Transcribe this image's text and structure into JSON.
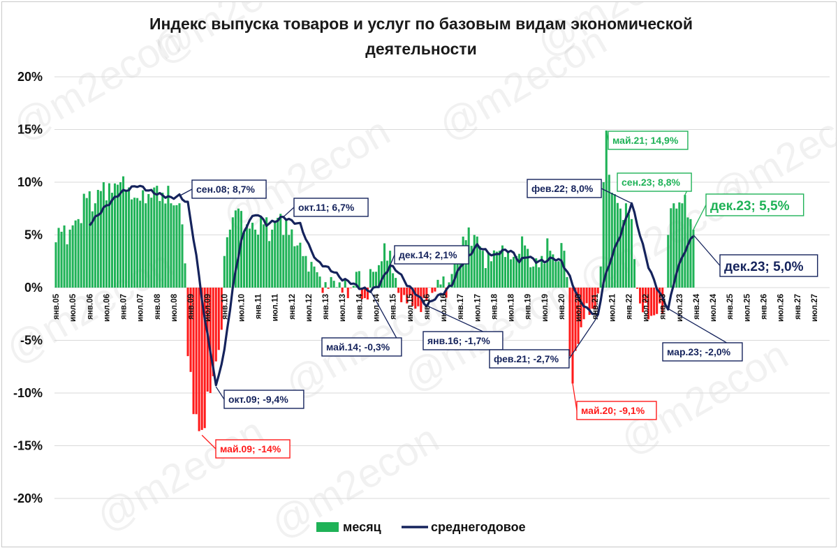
{
  "chart_data": {
    "type": "bar",
    "title_line1": "Индекс выпуска товаров и услуг по базовым видам экономической",
    "title_line2": "деятельности",
    "watermark": "@m2econ",
    "ylim": [
      -20,
      20
    ],
    "yticks": [
      20,
      15,
      10,
      5,
      0,
      -5,
      -10,
      -15,
      -20
    ],
    "ytick_labels": [
      "20%",
      "15%",
      "10%",
      "5%",
      "0%",
      "-5%",
      "-10%",
      "-15%",
      "-20%"
    ],
    "x_range": [
      "2005-01",
      "2027-12"
    ],
    "xtick_labels": [
      "янв.05",
      "июл.05",
      "янв.06",
      "июл.06",
      "янв.07",
      "июл.07",
      "янв.08",
      "июл.08",
      "янв.09",
      "июл.09",
      "янв.10",
      "июл.10",
      "янв.11",
      "июл.11",
      "янв.12",
      "июл.12",
      "янв.13",
      "июл.13",
      "янв.14",
      "июл.14",
      "янв.15",
      "июл.15",
      "янв.16",
      "июл.16",
      "янв.17",
      "июл.17",
      "янв.18",
      "июл.18",
      "янв.19",
      "июл.19",
      "янв.20",
      "июл.20",
      "янв.21",
      "июл.21",
      "янв.22",
      "июл.22",
      "янв.23",
      "июл.23",
      "янв.24",
      "июл.24",
      "янв.25",
      "июл.25",
      "янв.26",
      "июл.26",
      "янв.27",
      "июл.27"
    ],
    "legend": {
      "bar": "месяц",
      "line": "среднегодовое",
      "position": "bottom"
    },
    "colors": {
      "positive": "#1fb257",
      "negative": "#ff1a1a",
      "line": "#15235c",
      "grid": "#d9d9d9"
    },
    "monthly_anchors": [
      [
        "2005-01",
        4.3
      ],
      [
        "2005-03",
        5.3
      ],
      [
        "2005-06",
        5.5
      ],
      [
        "2005-09",
        6.5
      ],
      [
        "2005-12",
        8.5
      ],
      [
        "2006-03",
        8.0
      ],
      [
        "2006-06",
        10.0
      ],
      [
        "2006-09",
        9.0
      ],
      [
        "2006-12",
        10.0
      ],
      [
        "2007-03",
        9.5
      ],
      [
        "2007-06",
        8.5
      ],
      [
        "2007-09",
        8.0
      ],
      [
        "2007-12",
        9.5
      ],
      [
        "2008-03",
        9.0
      ],
      [
        "2008-06",
        8.0
      ],
      [
        "2008-09",
        8.0
      ],
      [
        "2008-10",
        6.0
      ],
      [
        "2008-11",
        2.3
      ],
      [
        "2008-12",
        -6.5
      ],
      [
        "2009-01",
        -8.0
      ],
      [
        "2009-02",
        -12.0
      ],
      [
        "2009-05",
        -13.5
      ],
      [
        "2009-08",
        -10.0
      ],
      [
        "2009-10",
        -7.0
      ],
      [
        "2009-12",
        -4.0
      ],
      [
        "2010-01",
        3.0
      ],
      [
        "2010-03",
        5.5
      ],
      [
        "2010-06",
        7.5
      ],
      [
        "2010-09",
        6.0
      ],
      [
        "2010-12",
        5.5
      ],
      [
        "2011-03",
        6.0
      ],
      [
        "2011-06",
        5.5
      ],
      [
        "2011-09",
        7.0
      ],
      [
        "2011-12",
        5.0
      ],
      [
        "2012-03",
        4.0
      ],
      [
        "2012-06",
        3.0
      ],
      [
        "2012-09",
        2.0
      ],
      [
        "2012-12",
        -0.5
      ],
      [
        "2013-03",
        1.0
      ],
      [
        "2013-06",
        0.5
      ],
      [
        "2013-09",
        -1.0
      ],
      [
        "2013-12",
        1.5
      ],
      [
        "2014-03",
        -1.0
      ],
      [
        "2014-06",
        1.5
      ],
      [
        "2014-09",
        2.5
      ],
      [
        "2014-12",
        3.5
      ],
      [
        "2015-03",
        -0.5
      ],
      [
        "2015-06",
        -1.5
      ],
      [
        "2015-09",
        -2.0
      ],
      [
        "2015-12",
        -1.0
      ],
      [
        "2016-03",
        -0.5
      ],
      [
        "2016-06",
        0.3
      ],
      [
        "2016-09",
        0.5
      ],
      [
        "2016-12",
        3.0
      ],
      [
        "2017-03",
        4.5
      ],
      [
        "2017-06",
        5.0
      ],
      [
        "2017-09",
        3.5
      ],
      [
        "2017-12",
        2.5
      ],
      [
        "2018-03",
        3.5
      ],
      [
        "2018-06",
        3.5
      ],
      [
        "2018-09",
        3.0
      ],
      [
        "2018-12",
        4.0
      ],
      [
        "2019-03",
        2.0
      ],
      [
        "2019-06",
        3.0
      ],
      [
        "2019-09",
        3.5
      ],
      [
        "2019-12",
        2.5
      ],
      [
        "2020-02",
        3.5
      ],
      [
        "2020-03",
        1.0
      ],
      [
        "2020-04",
        -6.5
      ],
      [
        "2020-05",
        -9.1
      ],
      [
        "2020-06",
        -6.0
      ],
      [
        "2020-09",
        -3.0
      ],
      [
        "2020-12",
        -2.0
      ],
      [
        "2021-01",
        -2.0
      ],
      [
        "2021-03",
        2.0
      ],
      [
        "2021-04",
        10.0
      ],
      [
        "2021-05",
        14.9
      ],
      [
        "2021-07",
        9.0
      ],
      [
        "2021-10",
        7.5
      ],
      [
        "2021-12",
        8.0
      ],
      [
        "2022-02",
        6.5
      ],
      [
        "2022-03",
        2.7
      ],
      [
        "2022-05",
        -1.5
      ],
      [
        "2022-08",
        -3.0
      ],
      [
        "2022-11",
        -2.5
      ],
      [
        "2022-12",
        -1.5
      ],
      [
        "2023-01",
        -2.5
      ],
      [
        "2023-02",
        0.0
      ],
      [
        "2023-03",
        5.0
      ],
      [
        "2023-05",
        8.0
      ],
      [
        "2023-06",
        7.5
      ],
      [
        "2023-08",
        8.0
      ],
      [
        "2023-09",
        8.8
      ],
      [
        "2023-11",
        6.5
      ],
      [
        "2023-12",
        5.5
      ]
    ],
    "line_anchors": [
      [
        "2006-01",
        6.0
      ],
      [
        "2006-06",
        7.5
      ],
      [
        "2006-12",
        9.0
      ],
      [
        "2007-06",
        9.7
      ],
      [
        "2007-12",
        9.0
      ],
      [
        "2008-06",
        8.5
      ],
      [
        "2008-09",
        8.7
      ],
      [
        "2008-12",
        8.0
      ],
      [
        "2009-03",
        3.0
      ],
      [
        "2009-06",
        -3.0
      ],
      [
        "2009-09",
        -7.5
      ],
      [
        "2009-10",
        -9.4
      ],
      [
        "2010-01",
        -6.0
      ],
      [
        "2010-04",
        0.0
      ],
      [
        "2010-07",
        4.5
      ],
      [
        "2010-10",
        6.5
      ],
      [
        "2011-01",
        7.0
      ],
      [
        "2011-04",
        6.0
      ],
      [
        "2011-07",
        6.3
      ],
      [
        "2011-10",
        6.7
      ],
      [
        "2012-01",
        6.3
      ],
      [
        "2012-04",
        6.0
      ],
      [
        "2012-07",
        4.0
      ],
      [
        "2012-10",
        2.5
      ],
      [
        "2013-01",
        2.0
      ],
      [
        "2013-04",
        1.5
      ],
      [
        "2013-07",
        0.8
      ],
      [
        "2013-10",
        0.5
      ],
      [
        "2014-01",
        0.0
      ],
      [
        "2014-05",
        -0.3
      ],
      [
        "2014-08",
        0.2
      ],
      [
        "2014-12",
        2.1
      ],
      [
        "2015-03",
        1.5
      ],
      [
        "2015-06",
        0.3
      ],
      [
        "2015-09",
        -0.5
      ],
      [
        "2016-01",
        -1.7
      ],
      [
        "2016-04",
        -1.0
      ],
      [
        "2016-07",
        -0.5
      ],
      [
        "2016-10",
        0.3
      ],
      [
        "2017-01",
        2.0
      ],
      [
        "2017-04",
        3.0
      ],
      [
        "2017-07",
        4.0
      ],
      [
        "2017-10",
        3.5
      ],
      [
        "2018-01",
        3.0
      ],
      [
        "2018-04",
        3.5
      ],
      [
        "2018-07",
        3.5
      ],
      [
        "2018-10",
        2.5
      ],
      [
        "2019-01",
        3.0
      ],
      [
        "2019-04",
        2.5
      ],
      [
        "2019-07",
        2.5
      ],
      [
        "2019-10",
        2.8
      ],
      [
        "2020-01",
        2.5
      ],
      [
        "2020-04",
        1.0
      ],
      [
        "2020-07",
        -1.0
      ],
      [
        "2020-10",
        -2.0
      ],
      [
        "2021-02",
        -2.7
      ],
      [
        "2021-04",
        0.5
      ],
      [
        "2021-07",
        3.0
      ],
      [
        "2021-10",
        5.0
      ],
      [
        "2022-02",
        8.0
      ],
      [
        "2022-05",
        5.0
      ],
      [
        "2022-08",
        2.0
      ],
      [
        "2022-11",
        0.0
      ],
      [
        "2023-03",
        -2.0
      ],
      [
        "2023-06",
        1.5
      ],
      [
        "2023-09",
        3.5
      ],
      [
        "2023-12",
        5.0
      ]
    ],
    "annotations": [
      {
        "text": "сен.08; 8,7%",
        "x": "2008-09",
        "y": 8.7,
        "color": "#15235c"
      },
      {
        "text": "окт.09; -9,4%",
        "x": "2009-10",
        "y": -9.4,
        "color": "#15235c"
      },
      {
        "text": "май.09; -14%",
        "x": "2009-05",
        "y": -14.0,
        "color": "#ff1a1a"
      },
      {
        "text": "окт.11; 6,7%",
        "x": "2011-10",
        "y": 6.7,
        "color": "#15235c"
      },
      {
        "text": "май.14; -0,3%",
        "x": "2014-05",
        "y": -0.3,
        "color": "#15235c"
      },
      {
        "text": "дек.14; 2,1%",
        "x": "2014-12",
        "y": 2.1,
        "color": "#15235c"
      },
      {
        "text": "янв.16; -1,7%",
        "x": "2016-01",
        "y": -1.7,
        "color": "#15235c"
      },
      {
        "text": "фев.21; -2,7%",
        "x": "2021-02",
        "y": -2.7,
        "color": "#15235c"
      },
      {
        "text": "май.20; -9,1%",
        "x": "2020-05",
        "y": -9.1,
        "color": "#ff1a1a"
      },
      {
        "text": "фев.22; 8,0%",
        "x": "2022-02",
        "y": 8.0,
        "color": "#15235c"
      },
      {
        "text": "май.21; 14,9%",
        "x": "2021-05",
        "y": 14.9,
        "color": "#1fb257"
      },
      {
        "text": "сен.23; 8,8%",
        "x": "2023-09",
        "y": 8.8,
        "color": "#1fb257"
      },
      {
        "text": "дек.23; 5,5%",
        "x": "2023-12",
        "y": 5.5,
        "color": "#1fb257",
        "large": true
      },
      {
        "text": "дек.23; 5,0%",
        "x": "2023-12",
        "y": 5.0,
        "color": "#15235c",
        "large": true
      },
      {
        "text": "мар.23; -2,0%",
        "x": "2023-03",
        "y": -2.0,
        "color": "#15235c"
      }
    ]
  }
}
